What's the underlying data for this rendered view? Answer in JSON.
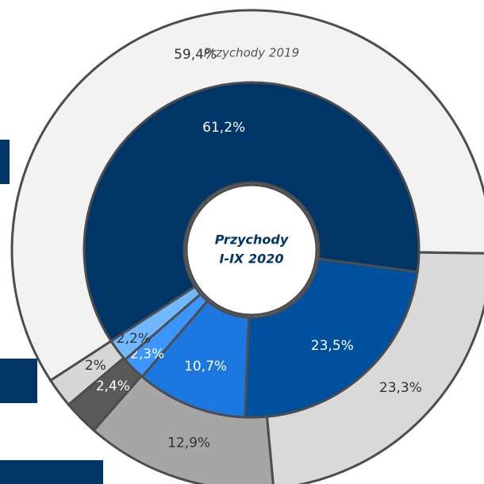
{
  "chart_data": {
    "type": "donut",
    "title": "Przychody 2019",
    "center_label": [
      "Przychody",
      "I-IX 2020"
    ],
    "series": [
      {
        "name": "Przychody 2019",
        "values": [
          59.4,
          23.3,
          12.9,
          2.4,
          2
        ],
        "value_labels": [
          "59,4%",
          "23,3%",
          "12,9%",
          "2,4%",
          "2%"
        ],
        "colors": [
          "#f2f2f2",
          "#d9d9d9",
          "#a6a6a6",
          "#595959",
          "#d6d6d6"
        ]
      },
      {
        "name": "Przychody I-IX 2020",
        "values": [
          61.2,
          23.5,
          10.7,
          2.3,
          2.2
        ],
        "value_labels": [
          "61,2%",
          "23,5%",
          "10,7%",
          "2,3%",
          "2,2%"
        ],
        "colors": [
          "#003567",
          "#0050a0",
          "#1a78e0",
          "#3c96ff",
          "#70b8ff"
        ]
      }
    ]
  }
}
